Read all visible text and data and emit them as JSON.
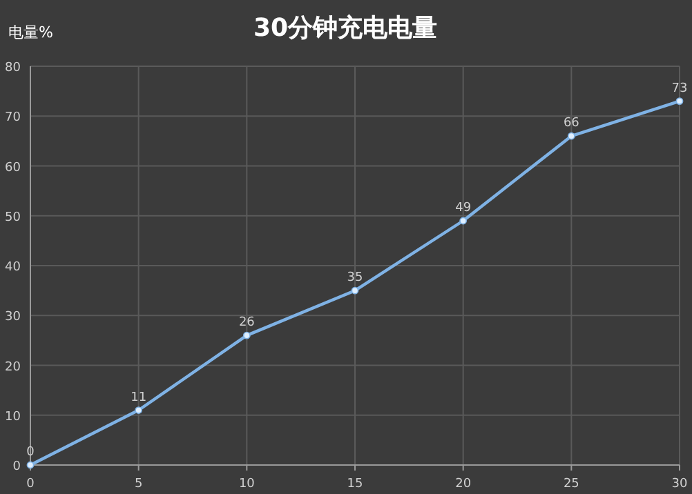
{
  "chart_data": {
    "type": "line",
    "title": "30分钟充电电量",
    "ylabel": "电量%",
    "x": [
      0,
      5,
      10,
      15,
      20,
      25,
      30
    ],
    "series": [
      {
        "color": "#7fb2e5",
        "values": [
          0,
          11,
          26,
          35,
          49,
          66,
          73
        ]
      }
    ],
    "xlim": [
      0,
      30
    ],
    "ylim": [
      0,
      80
    ],
    "xticks": [
      0,
      5,
      10,
      15,
      20,
      25,
      30
    ],
    "yticks": [
      0,
      10,
      20,
      30,
      40,
      50,
      60,
      70,
      80
    ],
    "grid": true,
    "marker": "circle",
    "line_style": "solid",
    "data_labels": true
  }
}
